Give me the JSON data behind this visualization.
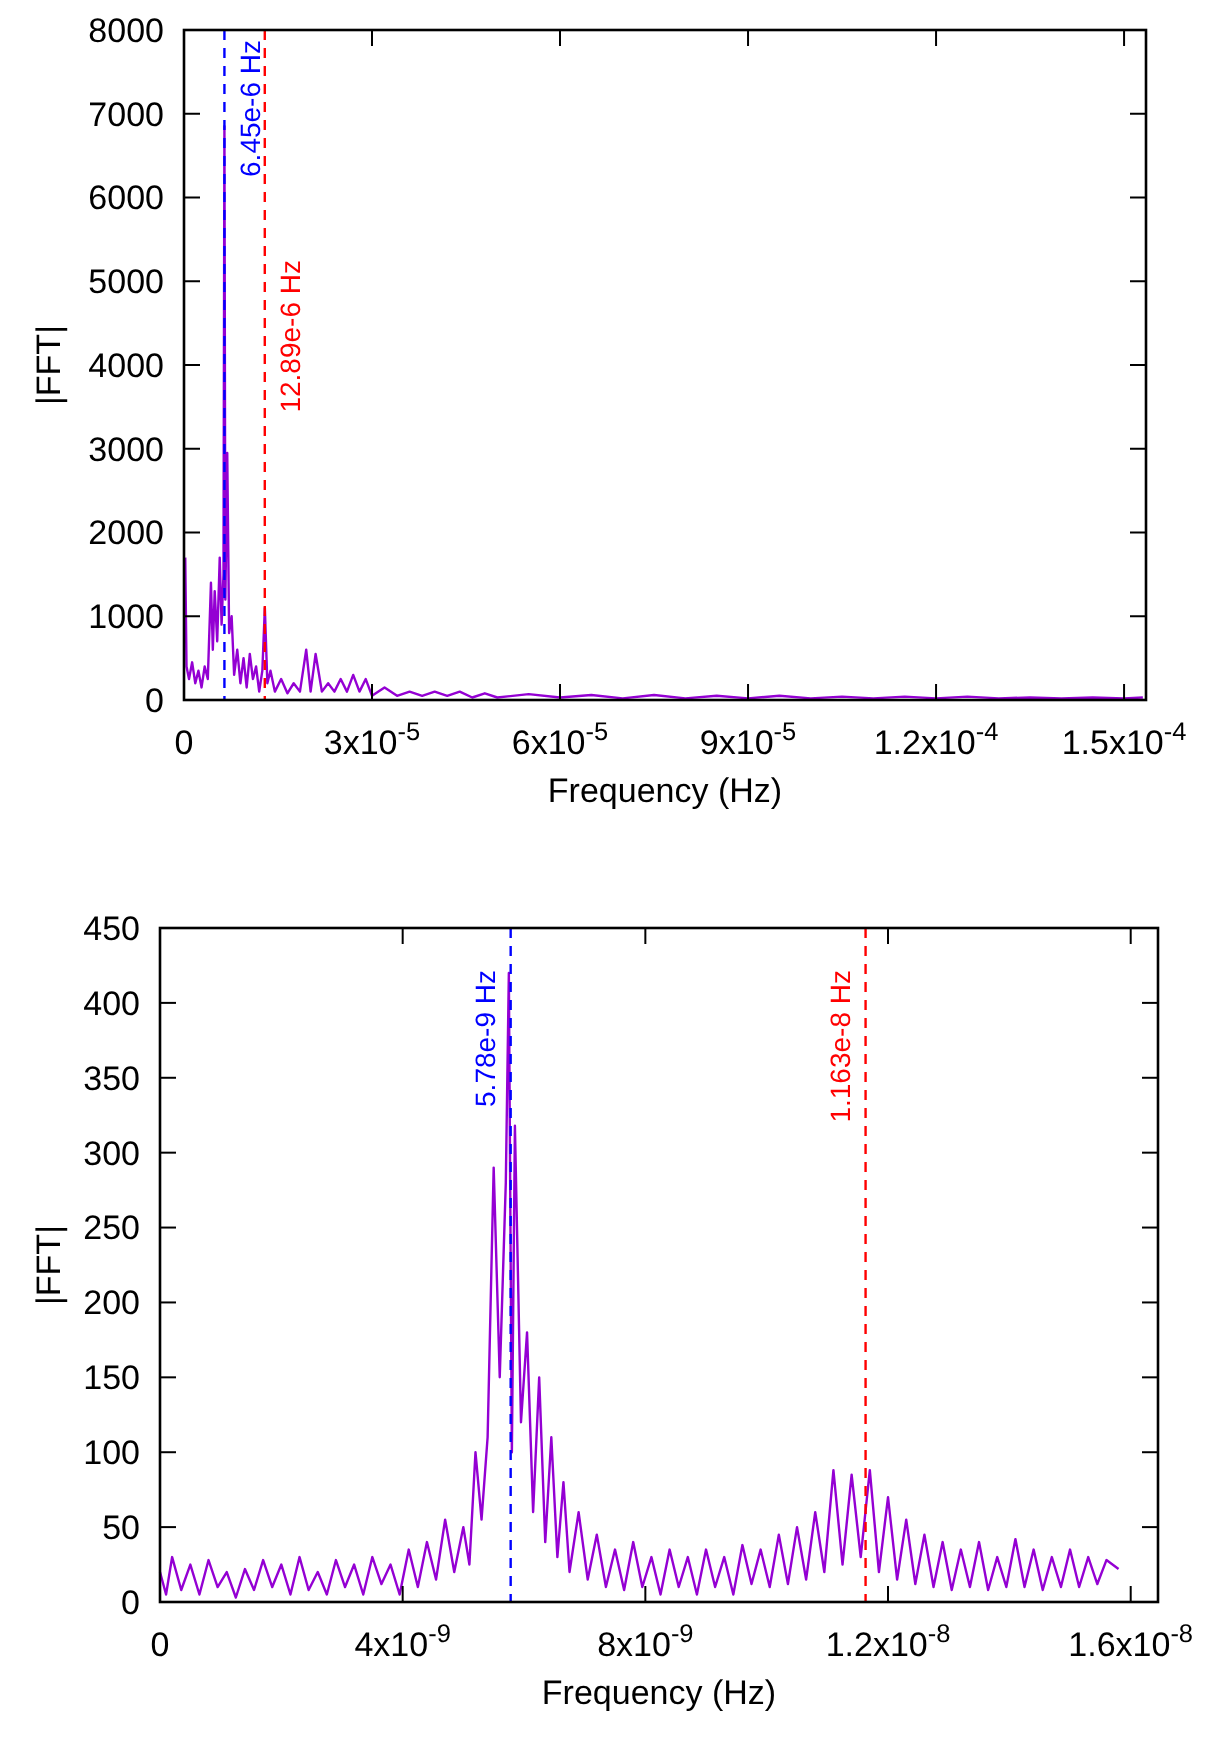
{
  "chart_data": [
    {
      "type": "line",
      "xlabel": "Frequency (Hz)",
      "ylabel": "|FFT|",
      "xlim": [
        0,
        0.0001535
      ],
      "ylim": [
        0,
        8000
      ],
      "xticks": [
        0,
        {
          "value": 3e-05,
          "label": "3x10$^{-5}$"
        },
        {
          "value": 6e-05,
          "label": "6x10$^{-5}$"
        },
        {
          "value": 9e-05,
          "label": "9x10$^{-5}$"
        },
        {
          "value": 0.00012,
          "label": "1.2x10$^{-4}$"
        },
        {
          "value": 0.00015,
          "label": "1.5x10$^{-4}$"
        }
      ],
      "yticks": [
        0,
        1000,
        2000,
        3000,
        4000,
        5000,
        6000,
        7000,
        8000
      ],
      "ref_lines": [
        {
          "axis": "x",
          "value": 6.45e-06,
          "label": "6.45e-6 Hz",
          "color": "#0000ff",
          "line_style": "dashed"
        },
        {
          "axis": "x",
          "value": 1.289e-05,
          "label": "12.89e-6 Hz",
          "color": "#ff0000",
          "line_style": "dashed"
        }
      ],
      "series": [
        {
          "color": "#9400d3",
          "x": [
            2e-07,
            4e-07,
            8e-07,
            1.3e-06,
            1.8e-06,
            2.3e-06,
            2.8e-06,
            3.3e-06,
            3.8e-06,
            4.3e-06,
            4.6e-06,
            4.9e-06,
            5.3e-06,
            5.7e-06,
            6e-06,
            6.3e-06,
            6.45e-06,
            6.6e-06,
            6.9e-06,
            7.2e-06,
            7.6e-06,
            8e-06,
            8.5e-06,
            9e-06,
            9.5e-06,
            1e-05,
            1.05e-05,
            1.1e-05,
            1.15e-05,
            1.2e-05,
            1.25e-05,
            1.29e-05,
            1.33e-05,
            1.38e-05,
            1.45e-05,
            1.55e-05,
            1.65e-05,
            1.75e-05,
            1.85e-05,
            1.95e-05,
            2.02e-05,
            2.1e-05,
            2.2e-05,
            2.3e-05,
            2.4e-05,
            2.5e-05,
            2.6e-05,
            2.7e-05,
            2.8e-05,
            2.9e-05,
            3e-05,
            3.2e-05,
            3.4e-05,
            3.6e-05,
            3.8e-05,
            4e-05,
            4.2e-05,
            4.4e-05,
            4.6e-05,
            4.8e-05,
            5e-05,
            5.5e-05,
            6e-05,
            6.5e-05,
            7e-05,
            7.5e-05,
            8e-05,
            8.5e-05,
            9e-05,
            9.5e-05,
            0.0001,
            0.000105,
            0.00011,
            0.000115,
            0.00012,
            0.000125,
            0.00013,
            0.000135,
            0.00014,
            0.000145,
            0.00015,
            0.000153
          ],
          "values": [
            1700,
            400,
            250,
            450,
            200,
            350,
            150,
            400,
            250,
            1400,
            600,
            1300,
            700,
            1700,
            900,
            1500,
            6850,
            1200,
            2950,
            800,
            1000,
            300,
            600,
            200,
            500,
            150,
            550,
            250,
            400,
            100,
            350,
            1100,
            200,
            350,
            100,
            250,
            80,
            200,
            100,
            600,
            100,
            550,
            100,
            200,
            100,
            250,
            100,
            300,
            100,
            250,
            50,
            150,
            50,
            100,
            50,
            100,
            50,
            100,
            30,
            80,
            30,
            70,
            30,
            60,
            20,
            60,
            20,
            50,
            20,
            50,
            20,
            40,
            20,
            40,
            20,
            40,
            20,
            30,
            20,
            30,
            20,
            30
          ]
        }
      ]
    },
    {
      "type": "line",
      "xlabel": "Frequency (Hz)",
      "ylabel": "|FFT|",
      "xlim": [
        0,
        1.645e-08
      ],
      "ylim": [
        0,
        450
      ],
      "xticks": [
        0,
        {
          "value": 4e-09,
          "label": "4x10$^{-9}$"
        },
        {
          "value": 8e-09,
          "label": "8x10$^{-9}$"
        },
        {
          "value": 1.2e-08,
          "label": "1.2x10$^{-8}$"
        },
        {
          "value": 1.6e-08,
          "label": "1.6x10$^{-8}$"
        }
      ],
      "yticks": [
        0,
        50,
        100,
        150,
        200,
        250,
        300,
        350,
        400,
        450
      ],
      "ref_lines": [
        {
          "axis": "x",
          "value": 5.78e-09,
          "label": "5.78e-9 Hz",
          "color": "#0000ff",
          "line_style": "dashed"
        },
        {
          "axis": "x",
          "value": 1.163e-08,
          "label": "1.163e-8 Hz",
          "color": "#ff0000",
          "line_style": "dashed"
        }
      ],
      "series": [
        {
          "color": "#9400d3",
          "x": [
            0,
            1e-10,
            2e-10,
            3.5e-10,
            5e-10,
            6.5e-10,
            8e-10,
            9.5e-10,
            1.1e-09,
            1.25e-09,
            1.4e-09,
            1.55e-09,
            1.7e-09,
            1.85e-09,
            2e-09,
            2.15e-09,
            2.3e-09,
            2.45e-09,
            2.6e-09,
            2.75e-09,
            2.9e-09,
            3.05e-09,
            3.2e-09,
            3.35e-09,
            3.5e-09,
            3.65e-09,
            3.8e-09,
            3.95e-09,
            4.1e-09,
            4.25e-09,
            4.4e-09,
            4.55e-09,
            4.7e-09,
            4.85e-09,
            5e-09,
            5.1e-09,
            5.2e-09,
            5.3e-09,
            5.4e-09,
            5.5e-09,
            5.6e-09,
            5.7e-09,
            5.75e-09,
            5.8e-09,
            5.85e-09,
            5.95e-09,
            6.05e-09,
            6.15e-09,
            6.25e-09,
            6.35e-09,
            6.45e-09,
            6.55e-09,
            6.65e-09,
            6.75e-09,
            6.9e-09,
            7.05e-09,
            7.2e-09,
            7.35e-09,
            7.5e-09,
            7.65e-09,
            7.8e-09,
            7.95e-09,
            8.1e-09,
            8.25e-09,
            8.4e-09,
            8.55e-09,
            8.7e-09,
            8.85e-09,
            9e-09,
            9.15e-09,
            9.3e-09,
            9.45e-09,
            9.6e-09,
            9.75e-09,
            9.9e-09,
            1.005e-08,
            1.02e-08,
            1.035e-08,
            1.05e-08,
            1.065e-08,
            1.08e-08,
            1.095e-08,
            1.11e-08,
            1.125e-08,
            1.14e-08,
            1.155e-08,
            1.17e-08,
            1.185e-08,
            1.2e-08,
            1.215e-08,
            1.23e-08,
            1.245e-08,
            1.26e-08,
            1.275e-08,
            1.29e-08,
            1.305e-08,
            1.32e-08,
            1.335e-08,
            1.35e-08,
            1.365e-08,
            1.38e-08,
            1.395e-08,
            1.41e-08,
            1.425e-08,
            1.44e-08,
            1.455e-08,
            1.47e-08,
            1.485e-08,
            1.5e-08,
            1.515e-08,
            1.53e-08,
            1.545e-08,
            1.56e-08,
            1.58e-08
          ],
          "values": [
            20,
            5,
            30,
            8,
            25,
            5,
            28,
            10,
            20,
            3,
            22,
            8,
            28,
            10,
            25,
            5,
            30,
            8,
            20,
            5,
            28,
            10,
            25,
            5,
            30,
            12,
            25,
            5,
            35,
            10,
            40,
            15,
            55,
            20,
            50,
            25,
            100,
            55,
            110,
            290,
            150,
            280,
            420,
            100,
            318,
            120,
            180,
            60,
            150,
            40,
            110,
            30,
            80,
            20,
            60,
            15,
            45,
            10,
            35,
            8,
            40,
            10,
            30,
            5,
            35,
            10,
            30,
            5,
            35,
            10,
            30,
            5,
            38,
            12,
            35,
            10,
            45,
            12,
            50,
            15,
            60,
            20,
            88,
            25,
            85,
            30,
            88,
            20,
            70,
            15,
            55,
            12,
            45,
            10,
            40,
            8,
            35,
            10,
            40,
            8,
            30,
            10,
            42,
            10,
            35,
            8,
            30,
            10,
            35,
            10,
            30,
            12,
            28,
            22
          ]
        }
      ]
    }
  ]
}
